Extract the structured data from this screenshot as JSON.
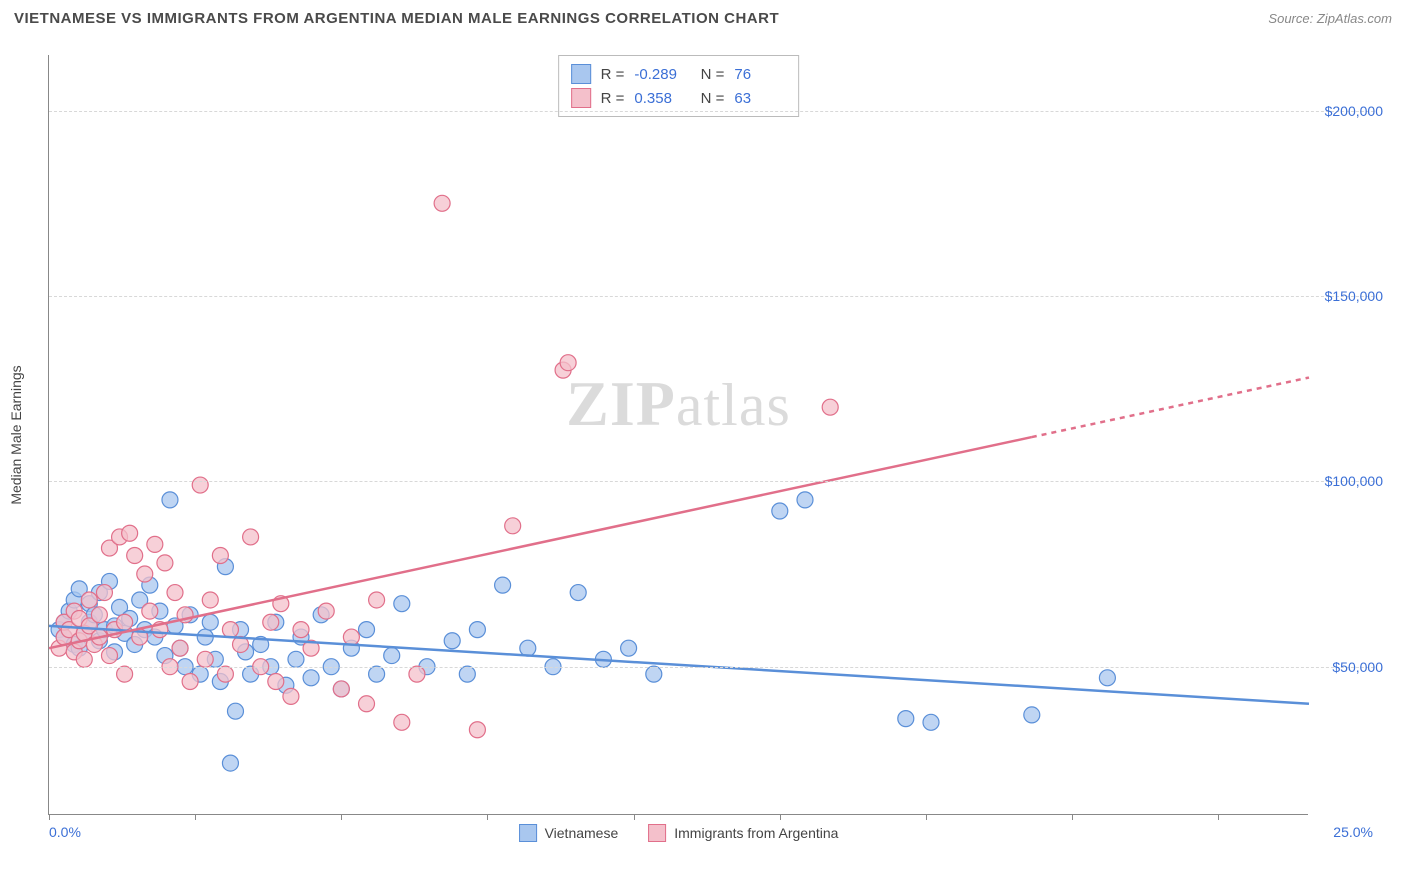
{
  "header": {
    "title": "VIETNAMESE VS IMMIGRANTS FROM ARGENTINA MEDIAN MALE EARNINGS CORRELATION CHART",
    "source_label": "Source:",
    "source_value": "ZipAtlas.com"
  },
  "chart": {
    "type": "scatter",
    "watermark_a": "ZIP",
    "watermark_b": "atlas",
    "ylabel": "Median Male Earnings",
    "xlim": [
      0,
      25
    ],
    "ylim": [
      10000,
      215000
    ],
    "x_min_label": "0.0%",
    "x_max_label": "25.0%",
    "x_color": "#3b6fd6",
    "xtick_positions": [
      0,
      2.9,
      5.8,
      8.7,
      11.6,
      14.5,
      17.4,
      20.3,
      23.2
    ],
    "y_ticks": [
      {
        "value": 50000,
        "label": "$50,000"
      },
      {
        "value": 100000,
        "label": "$100,000"
      },
      {
        "value": 150000,
        "label": "$150,000"
      },
      {
        "value": 200000,
        "label": "$200,000"
      }
    ],
    "ytick_color": "#3b6fd6",
    "grid_color": "#d8d8d8",
    "background_color": "#ffffff",
    "series": [
      {
        "name": "Vietnamese",
        "color_fill": "#a9c7ef",
        "color_stroke": "#5a8fd8",
        "marker_radius": 8,
        "stats": {
          "R": "-0.289",
          "N": "76"
        },
        "trend": {
          "y_at_xmin": 61000,
          "y_at_xmax": 40000,
          "line_width": 2.5,
          "dashed_from": null
        },
        "points": [
          [
            0.2,
            60000
          ],
          [
            0.3,
            62000
          ],
          [
            0.3,
            58000
          ],
          [
            0.4,
            65000
          ],
          [
            0.5,
            56000
          ],
          [
            0.5,
            68000
          ],
          [
            0.6,
            71000
          ],
          [
            0.6,
            55000
          ],
          [
            0.7,
            59000
          ],
          [
            0.8,
            62000
          ],
          [
            0.8,
            67000
          ],
          [
            0.9,
            64000
          ],
          [
            1.0,
            70000
          ],
          [
            1.0,
            57000
          ],
          [
            1.1,
            60000
          ],
          [
            1.2,
            73000
          ],
          [
            1.3,
            61000
          ],
          [
            1.3,
            54000
          ],
          [
            1.4,
            66000
          ],
          [
            1.5,
            59000
          ],
          [
            1.6,
            63000
          ],
          [
            1.7,
            56000
          ],
          [
            1.8,
            68000
          ],
          [
            1.9,
            60000
          ],
          [
            2.0,
            72000
          ],
          [
            2.1,
            58000
          ],
          [
            2.2,
            65000
          ],
          [
            2.3,
            53000
          ],
          [
            2.4,
            95000
          ],
          [
            2.5,
            61000
          ],
          [
            2.6,
            55000
          ],
          [
            2.7,
            50000
          ],
          [
            2.8,
            64000
          ],
          [
            3.0,
            48000
          ],
          [
            3.1,
            58000
          ],
          [
            3.2,
            62000
          ],
          [
            3.3,
            52000
          ],
          [
            3.4,
            46000
          ],
          [
            3.5,
            77000
          ],
          [
            3.6,
            24000
          ],
          [
            3.7,
            38000
          ],
          [
            3.8,
            60000
          ],
          [
            3.9,
            54000
          ],
          [
            4.0,
            48000
          ],
          [
            4.2,
            56000
          ],
          [
            4.4,
            50000
          ],
          [
            4.5,
            62000
          ],
          [
            4.7,
            45000
          ],
          [
            4.9,
            52000
          ],
          [
            5.0,
            58000
          ],
          [
            5.2,
            47000
          ],
          [
            5.4,
            64000
          ],
          [
            5.6,
            50000
          ],
          [
            5.8,
            44000
          ],
          [
            6.0,
            55000
          ],
          [
            6.3,
            60000
          ],
          [
            6.5,
            48000
          ],
          [
            6.8,
            53000
          ],
          [
            7.0,
            67000
          ],
          [
            7.5,
            50000
          ],
          [
            8.0,
            57000
          ],
          [
            8.3,
            48000
          ],
          [
            8.5,
            60000
          ],
          [
            9.0,
            72000
          ],
          [
            9.5,
            55000
          ],
          [
            10.0,
            50000
          ],
          [
            10.5,
            70000
          ],
          [
            11.0,
            52000
          ],
          [
            11.5,
            55000
          ],
          [
            12.0,
            48000
          ],
          [
            14.5,
            92000
          ],
          [
            17.0,
            36000
          ],
          [
            17.5,
            35000
          ],
          [
            19.5,
            37000
          ],
          [
            21.0,
            47000
          ],
          [
            15.0,
            95000
          ]
        ]
      },
      {
        "name": "Immigrants from Argentina",
        "color_fill": "#f4c0cb",
        "color_stroke": "#e16f8a",
        "marker_radius": 8,
        "stats": {
          "R": "0.358",
          "N": "63"
        },
        "trend": {
          "y_at_xmin": 55000,
          "y_at_xmax": 128000,
          "line_width": 2.5,
          "dashed_from": 19.5
        },
        "points": [
          [
            0.2,
            55000
          ],
          [
            0.3,
            58000
          ],
          [
            0.3,
            62000
          ],
          [
            0.4,
            60000
          ],
          [
            0.5,
            54000
          ],
          [
            0.5,
            65000
          ],
          [
            0.6,
            57000
          ],
          [
            0.6,
            63000
          ],
          [
            0.7,
            59000
          ],
          [
            0.7,
            52000
          ],
          [
            0.8,
            68000
          ],
          [
            0.8,
            61000
          ],
          [
            0.9,
            56000
          ],
          [
            1.0,
            64000
          ],
          [
            1.0,
            58000
          ],
          [
            1.1,
            70000
          ],
          [
            1.2,
            53000
          ],
          [
            1.2,
            82000
          ],
          [
            1.3,
            60000
          ],
          [
            1.4,
            85000
          ],
          [
            1.5,
            62000
          ],
          [
            1.5,
            48000
          ],
          [
            1.6,
            86000
          ],
          [
            1.7,
            80000
          ],
          [
            1.8,
            58000
          ],
          [
            1.9,
            75000
          ],
          [
            2.0,
            65000
          ],
          [
            2.1,
            83000
          ],
          [
            2.2,
            60000
          ],
          [
            2.3,
            78000
          ],
          [
            2.4,
            50000
          ],
          [
            2.5,
            70000
          ],
          [
            2.6,
            55000
          ],
          [
            2.7,
            64000
          ],
          [
            2.8,
            46000
          ],
          [
            3.0,
            99000
          ],
          [
            3.1,
            52000
          ],
          [
            3.2,
            68000
          ],
          [
            3.4,
            80000
          ],
          [
            3.5,
            48000
          ],
          [
            3.6,
            60000
          ],
          [
            3.8,
            56000
          ],
          [
            4.0,
            85000
          ],
          [
            4.2,
            50000
          ],
          [
            4.4,
            62000
          ],
          [
            4.6,
            67000
          ],
          [
            4.8,
            42000
          ],
          [
            5.0,
            60000
          ],
          [
            5.2,
            55000
          ],
          [
            5.5,
            65000
          ],
          [
            5.8,
            44000
          ],
          [
            6.0,
            58000
          ],
          [
            6.3,
            40000
          ],
          [
            6.5,
            68000
          ],
          [
            7.0,
            35000
          ],
          [
            7.3,
            48000
          ],
          [
            7.8,
            175000
          ],
          [
            8.5,
            33000
          ],
          [
            9.2,
            88000
          ],
          [
            10.2,
            130000
          ],
          [
            10.3,
            132000
          ],
          [
            15.5,
            120000
          ],
          [
            4.5,
            46000
          ]
        ]
      }
    ],
    "bottom_legend": [
      {
        "swatch_fill": "#a9c7ef",
        "swatch_stroke": "#5a8fd8",
        "label": "Vietnamese"
      },
      {
        "swatch_fill": "#f4c0cb",
        "swatch_stroke": "#e16f8a",
        "label": "Immigrants from Argentina"
      }
    ]
  }
}
